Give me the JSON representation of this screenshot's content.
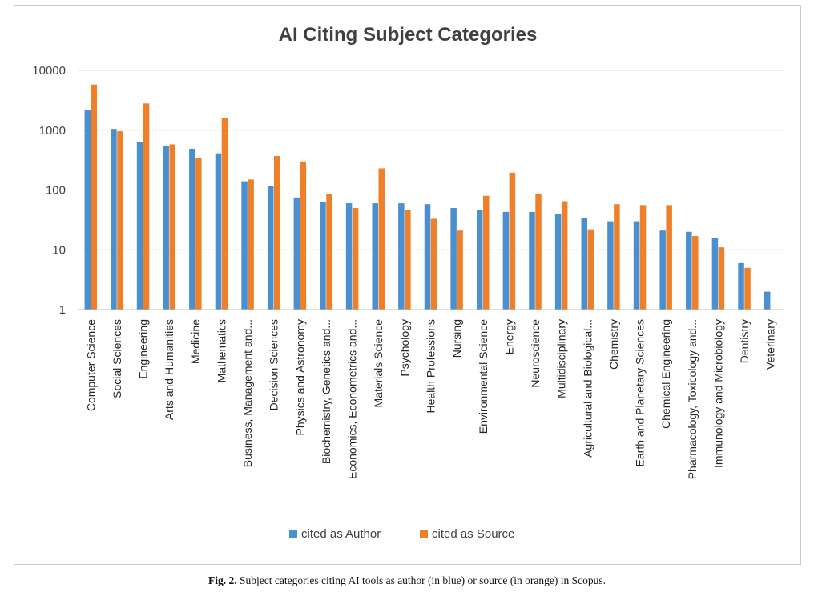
{
  "chart_data": {
    "type": "bar",
    "title": "AI Citing Subject Categories",
    "xlabel": "",
    "ylabel": "",
    "y_scale": "log",
    "ylim": [
      1,
      10000
    ],
    "yticks": [
      "1",
      "10",
      "100",
      "1000",
      "10000"
    ],
    "grid": true,
    "legend_position": "bottom",
    "categories": [
      "Computer Science",
      "Social Sciences",
      "Engineering",
      "Arts and Humanities",
      "Medicine",
      "Mathematics",
      "Business, Management and...",
      "Decision Sciences",
      "Physics and Astronomy",
      "Biochemistry, Genetics and...",
      "Economics, Econometrics and...",
      "Materials Science",
      "Psychology",
      "Health Professions",
      "Nursing",
      "Environmental Science",
      "Energy",
      "Neuroscience",
      "Multidisciplinary",
      "Agricultural and Biological...",
      "Chemistry",
      "Earth and Planetary Sciences",
      "Chemical Engineering",
      "Pharmacology, Toxicology and...",
      "Immunology and Microbiology",
      "Dentistry",
      "Veterinary"
    ],
    "series": [
      {
        "name": "cited as Author",
        "color": "#4a90d0",
        "values": [
          2200,
          1050,
          630,
          540,
          490,
          410,
          140,
          115,
          75,
          63,
          60,
          60,
          60,
          58,
          50,
          46,
          43,
          43,
          40,
          34,
          30,
          30,
          21,
          20,
          16,
          6,
          2
        ]
      },
      {
        "name": "cited as Source",
        "color": "#f07f2a",
        "values": [
          5800,
          960,
          2800,
          580,
          340,
          1600,
          150,
          370,
          300,
          85,
          50,
          230,
          46,
          33,
          21,
          80,
          195,
          85,
          65,
          22,
          58,
          56,
          56,
          17,
          11,
          5,
          null
        ]
      }
    ]
  },
  "caption": {
    "label": "Fig. 2.",
    "text": "Subject categories citing AI tools as author (in blue) or source (in orange) in Scopus."
  }
}
